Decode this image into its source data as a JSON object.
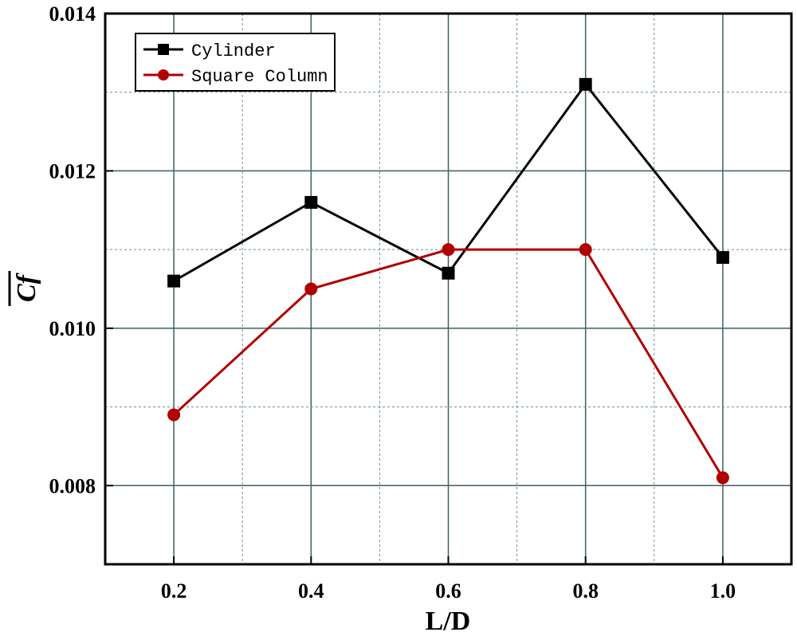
{
  "chart_data": {
    "type": "line",
    "xlabel": "L/D",
    "ylabel": "Cf",
    "xlim": [
      0.1,
      1.1
    ],
    "ylim": [
      0.007,
      0.014
    ],
    "x_ticks": [
      0.2,
      0.4,
      0.6,
      0.8,
      1.0
    ],
    "x_tick_labels": [
      "0.2",
      "0.4",
      "0.6",
      "0.8",
      "1.0"
    ],
    "y_ticks": [
      0.008,
      0.01,
      0.012,
      0.014
    ],
    "y_tick_labels": [
      "0.008",
      "0.010",
      "0.012",
      "0.014"
    ],
    "grid": true,
    "legend_position": "top-left",
    "series": [
      {
        "name": "Cylinder",
        "x": [
          0.2,
          0.4,
          0.6,
          0.8,
          1.0
        ],
        "values": [
          0.0106,
          0.0116,
          0.0107,
          0.0131,
          0.0109
        ],
        "color": "#000000",
        "marker": "square"
      },
      {
        "name": "Square Column",
        "x": [
          0.2,
          0.4,
          0.6,
          0.8,
          1.0
        ],
        "values": [
          0.0089,
          0.0105,
          0.011,
          0.011,
          0.0081
        ],
        "color": "#b00000",
        "marker": "circle"
      }
    ]
  }
}
